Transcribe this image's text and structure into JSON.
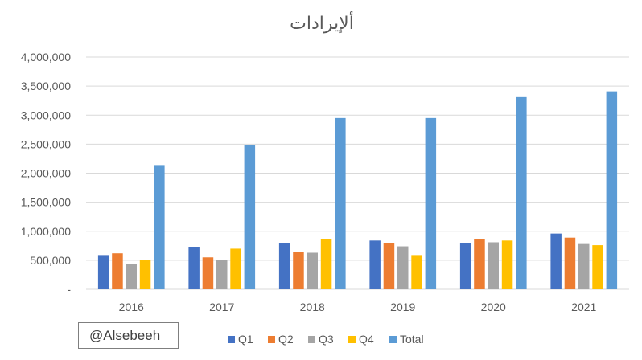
{
  "chart_data": {
    "type": "bar",
    "title": "ألإيرادات",
    "categories": [
      "2016",
      "2017",
      "2018",
      "2019",
      "2020",
      "2021"
    ],
    "series": [
      {
        "name": "Q1",
        "color": "#4472C4",
        "values": [
          590000,
          730000,
          790000,
          840000,
          800000,
          960000
        ]
      },
      {
        "name": "Q2",
        "color": "#ED7D31",
        "values": [
          620000,
          550000,
          650000,
          790000,
          860000,
          890000
        ]
      },
      {
        "name": "Q3",
        "color": "#A5A5A5",
        "values": [
          440000,
          500000,
          630000,
          740000,
          810000,
          780000
        ]
      },
      {
        "name": "Q4",
        "color": "#FFC000",
        "values": [
          500000,
          700000,
          870000,
          590000,
          840000,
          760000
        ]
      },
      {
        "name": "Total",
        "color": "#5B9BD5",
        "values": [
          2140000,
          2480000,
          2950000,
          2950000,
          3310000,
          3410000
        ]
      }
    ],
    "ylim": [
      0,
      4000000
    ],
    "yticks": [
      "-",
      "500,000",
      "1,000,000",
      "1,500,000",
      "2,000,000",
      "2,500,000",
      "3,000,000",
      "3,500,000",
      "4,000,000"
    ],
    "ytick_values": [
      0,
      500000,
      1000000,
      1500000,
      2000000,
      2500000,
      3000000,
      3500000,
      4000000
    ],
    "grid": true,
    "legend_position": "bottom"
  },
  "watermark": "@Alsebeeh"
}
